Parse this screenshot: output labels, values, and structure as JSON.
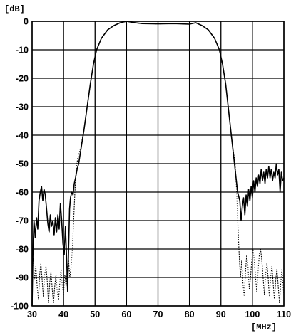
{
  "chart_data": {
    "type": "line",
    "title": "",
    "xlabel": "[MHz]",
    "ylabel": "[dB]",
    "xlim": [
      30,
      110
    ],
    "ylim": [
      -100,
      0
    ],
    "x_ticks": [
      30,
      40,
      50,
      60,
      70,
      80,
      90,
      100,
      110
    ],
    "y_ticks": [
      0,
      -10,
      -20,
      -30,
      -40,
      -50,
      -60,
      -70,
      -80,
      -90,
      -100
    ],
    "grid": true,
    "series": [
      {
        "style": "solid",
        "points": [
          [
            30,
            -100
          ],
          [
            30.3,
            -80
          ],
          [
            30.6,
            -70
          ],
          [
            31,
            -76
          ],
          [
            31.4,
            -69
          ],
          [
            31.8,
            -73
          ],
          [
            32.2,
            -63
          ],
          [
            32.6,
            -60
          ],
          [
            33,
            -58
          ],
          [
            33.4,
            -63
          ],
          [
            33.8,
            -59
          ],
          [
            34.2,
            -61
          ],
          [
            34.6,
            -66
          ],
          [
            35,
            -71
          ],
          [
            35.4,
            -74
          ],
          [
            35.8,
            -68
          ],
          [
            36.2,
            -72
          ],
          [
            36.6,
            -70
          ],
          [
            37,
            -75
          ],
          [
            37.4,
            -69
          ],
          [
            37.8,
            -74
          ],
          [
            38.2,
            -68
          ],
          [
            38.6,
            -73
          ],
          [
            39,
            -64
          ],
          [
            39.4,
            -70
          ],
          [
            39.8,
            -78
          ],
          [
            40.2,
            -82
          ],
          [
            40.6,
            -72
          ],
          [
            41,
            -84
          ],
          [
            41.3,
            -95
          ],
          [
            41.6,
            -80
          ],
          [
            41.9,
            -66
          ],
          [
            42.2,
            -62
          ],
          [
            42.6,
            -60
          ],
          [
            43,
            -61
          ],
          [
            43.4,
            -57
          ],
          [
            43.8,
            -55
          ],
          [
            44.3,
            -52
          ],
          [
            44.8,
            -50
          ],
          [
            45.5,
            -45
          ],
          [
            46.5,
            -38
          ],
          [
            47.5,
            -30
          ],
          [
            48.5,
            -22
          ],
          [
            49.5,
            -15
          ],
          [
            50.5,
            -10
          ],
          [
            52,
            -6
          ],
          [
            54,
            -3
          ],
          [
            56,
            -1.5
          ],
          [
            58,
            -0.5
          ],
          [
            60,
            0
          ],
          [
            62,
            -0.4
          ],
          [
            65,
            -0.8
          ],
          [
            70,
            -0.9
          ],
          [
            75,
            -0.8
          ],
          [
            80,
            -1
          ],
          [
            82,
            -0.5
          ],
          [
            84,
            -1.5
          ],
          [
            86,
            -3
          ],
          [
            88,
            -6
          ],
          [
            89.5,
            -10
          ],
          [
            90.5,
            -15
          ],
          [
            91.5,
            -22
          ],
          [
            92.5,
            -32
          ],
          [
            93.5,
            -42
          ],
          [
            94.5,
            -52
          ],
          [
            95.3,
            -60
          ],
          [
            96,
            -63
          ],
          [
            96.4,
            -70
          ],
          [
            96.8,
            -65
          ],
          [
            97.2,
            -62
          ],
          [
            97.6,
            -68
          ],
          [
            98,
            -61
          ],
          [
            98.4,
            -65
          ],
          [
            98.8,
            -59
          ],
          [
            99.2,
            -63
          ],
          [
            99.6,
            -58
          ],
          [
            100,
            -62
          ],
          [
            100.4,
            -56
          ],
          [
            100.8,
            -60
          ],
          [
            101.2,
            -55
          ],
          [
            101.6,
            -58
          ],
          [
            102,
            -54
          ],
          [
            102.4,
            -57
          ],
          [
            102.8,
            -52
          ],
          [
            103.2,
            -56
          ],
          [
            103.6,
            -53
          ],
          [
            104,
            -57
          ],
          [
            104.4,
            -52
          ],
          [
            104.8,
            -55
          ],
          [
            105.2,
            -51
          ],
          [
            105.6,
            -55
          ],
          [
            106,
            -52
          ],
          [
            106.4,
            -56
          ],
          [
            106.8,
            -53
          ],
          [
            107.2,
            -55
          ],
          [
            107.6,
            -50
          ],
          [
            108,
            -54
          ],
          [
            108.4,
            -52
          ],
          [
            108.8,
            -60
          ],
          [
            109.2,
            -53
          ],
          [
            109.6,
            -56
          ],
          [
            110,
            -55
          ]
        ]
      },
      {
        "style": "dotted",
        "points": [
          [
            30,
            -88
          ],
          [
            30.4,
            -83
          ],
          [
            30.8,
            -91
          ],
          [
            31.2,
            -86
          ],
          [
            31.6,
            -93
          ],
          [
            32,
            -98
          ],
          [
            32.4,
            -89
          ],
          [
            32.8,
            -85
          ],
          [
            33.2,
            -91
          ],
          [
            33.6,
            -97
          ],
          [
            34,
            -89
          ],
          [
            34.4,
            -86
          ],
          [
            34.8,
            -91
          ],
          [
            35.2,
            -99
          ],
          [
            35.6,
            -92
          ],
          [
            36,
            -88
          ],
          [
            36.4,
            -94
          ],
          [
            36.8,
            -99
          ],
          [
            37.2,
            -93
          ],
          [
            37.6,
            -89
          ],
          [
            38,
            -95
          ],
          [
            38.4,
            -98
          ],
          [
            38.8,
            -92
          ],
          [
            39.2,
            -87
          ],
          [
            39.6,
            -93
          ],
          [
            40,
            -96
          ],
          [
            40.4,
            -89
          ],
          [
            40.8,
            -93
          ],
          [
            41.2,
            -87
          ],
          [
            41.6,
            -84
          ],
          [
            42,
            -90
          ],
          [
            42.4,
            -86
          ],
          [
            42.8,
            -80
          ],
          [
            43.2,
            -70
          ],
          [
            43.6,
            -60
          ],
          [
            44,
            -52
          ],
          [
            44.5,
            -48
          ],
          [
            45.5,
            -44
          ],
          [
            46.5,
            -38
          ],
          [
            47.5,
            -30
          ],
          [
            48.5,
            -22
          ],
          [
            49.5,
            -15
          ],
          [
            50.5,
            -10
          ],
          [
            52,
            -6
          ],
          [
            54,
            -3
          ],
          [
            56,
            -1.5
          ],
          [
            58,
            -0.5
          ],
          [
            60,
            0
          ],
          [
            62,
            -0.4
          ],
          [
            65,
            -0.8
          ],
          [
            70,
            -0.9
          ],
          [
            75,
            -0.8
          ],
          [
            80,
            -1
          ],
          [
            82,
            -0.5
          ],
          [
            84,
            -1.5
          ],
          [
            86,
            -3
          ],
          [
            88,
            -6
          ],
          [
            89.5,
            -10
          ],
          [
            90.5,
            -15
          ],
          [
            91.5,
            -22
          ],
          [
            92.5,
            -32
          ],
          [
            93.5,
            -42
          ],
          [
            94.5,
            -50
          ],
          [
            95,
            -60
          ],
          [
            95.4,
            -72
          ],
          [
            95.8,
            -82
          ],
          [
            96.2,
            -90
          ],
          [
            96.6,
            -84
          ],
          [
            97,
            -92
          ],
          [
            97.4,
            -97
          ],
          [
            97.8,
            -88
          ],
          [
            98.2,
            -82
          ],
          [
            98.6,
            -86
          ],
          [
            99,
            -94
          ],
          [
            99.4,
            -90
          ],
          [
            99.8,
            -84
          ],
          [
            100.2,
            -80
          ],
          [
            100.6,
            -84
          ],
          [
            101,
            -90
          ],
          [
            101.4,
            -95
          ],
          [
            101.8,
            -88
          ],
          [
            102.2,
            -82
          ],
          [
            102.6,
            -80
          ],
          [
            103,
            -84
          ],
          [
            103.4,
            -90
          ],
          [
            103.8,
            -96
          ],
          [
            104.2,
            -89
          ],
          [
            104.6,
            -85
          ],
          [
            105,
            -90
          ],
          [
            105.4,
            -97
          ],
          [
            105.8,
            -90
          ],
          [
            106.2,
            -86
          ],
          [
            106.6,
            -92
          ],
          [
            107,
            -98
          ],
          [
            107.4,
            -91
          ],
          [
            107.8,
            -87
          ],
          [
            108.2,
            -93
          ],
          [
            108.6,
            -99
          ],
          [
            109,
            -92
          ],
          [
            109.4,
            -87
          ],
          [
            109.8,
            -94
          ],
          [
            110,
            -96
          ]
        ]
      }
    ]
  }
}
